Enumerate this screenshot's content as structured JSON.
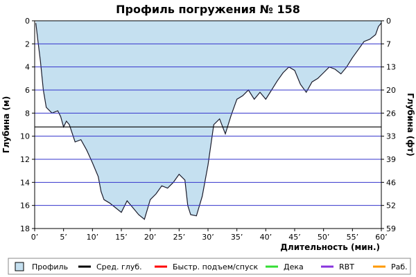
{
  "chart_data": {
    "type": "area",
    "title": "Профиль погружения № 158",
    "xlabel": "Длительность (мин.)",
    "ylabel_left": "Глубина (м)",
    "ylabel_right": "Глубина (фт)",
    "xlim": [
      0,
      60
    ],
    "ylim": [
      0,
      18
    ],
    "y_inverted": true,
    "x_ticks": [
      "0’",
      "5’",
      "10’",
      "15’",
      "20’",
      "25’",
      "30’",
      "35’",
      "40’",
      "45’",
      "50’",
      "55’",
      "60’"
    ],
    "y_ticks_left": [
      "0",
      "2",
      "4",
      "6",
      "8",
      "10",
      "12",
      "14",
      "16",
      "18"
    ],
    "y_ticks_right": [
      "0",
      "7",
      "13",
      "20",
      "26",
      "33",
      "39",
      "46",
      "52",
      "59"
    ],
    "average_depth": 9.2,
    "grid": true,
    "colors": {
      "profile_fill": "#c5e0f0",
      "profile_line": "#1a1a2a",
      "grid": "#3333cc",
      "average_line": "#000000",
      "fast_ascent": "#ff0000",
      "deco": "#33dd33",
      "rbt": "#8833dd",
      "work": "#ff9900"
    },
    "series": [
      {
        "name": "Профиль",
        "x": [
          0.2,
          0.5,
          1,
          1.5,
          2,
          3,
          4,
          4.5,
          5,
          5.5,
          6,
          7,
          8,
          9,
          10,
          11,
          11.5,
          12,
          13,
          14,
          15,
          16,
          17,
          18,
          19,
          20,
          21,
          22,
          23,
          24,
          25,
          26,
          26.5,
          27,
          28,
          29,
          30,
          31,
          32,
          33,
          34,
          35,
          36,
          37,
          38,
          39,
          40,
          41,
          42,
          43,
          44,
          45,
          46,
          47,
          48,
          49,
          50,
          51,
          52,
          53,
          54,
          55,
          56,
          57,
          58,
          59,
          59.5,
          60
        ],
        "y": [
          0.2,
          1.5,
          3.5,
          6,
          7.5,
          8.0,
          7.8,
          8.3,
          9.2,
          8.7,
          9.0,
          10.5,
          10.3,
          11.2,
          12.3,
          13.5,
          14.8,
          15.5,
          15.8,
          16.2,
          16.6,
          15.6,
          16.2,
          16.8,
          17.2,
          15.5,
          15.0,
          14.3,
          14.5,
          14.0,
          13.3,
          13.8,
          16.0,
          16.8,
          16.9,
          15.2,
          12.5,
          9.0,
          8.5,
          9.8,
          8.2,
          6.8,
          6.5,
          6.0,
          6.8,
          6.2,
          6.8,
          6.0,
          5.2,
          4.5,
          4.0,
          4.3,
          5.5,
          6.2,
          5.3,
          5.0,
          4.5,
          4.0,
          4.2,
          4.6,
          4.0,
          3.2,
          2.5,
          1.8,
          1.6,
          1.2,
          0.5,
          0.2
        ]
      }
    ]
  },
  "legend": [
    {
      "label": "Профиль",
      "kind": "box",
      "color": "#c5e0f0"
    },
    {
      "label": "Сред. глуб.",
      "kind": "line",
      "color": "#000000"
    },
    {
      "label": "Быстр. подъем/спуск",
      "kind": "line",
      "color": "#ff0000"
    },
    {
      "label": "Дека",
      "kind": "line",
      "color": "#33dd33"
    },
    {
      "label": "RBT",
      "kind": "line",
      "color": "#8833dd"
    },
    {
      "label": "Раб.",
      "kind": "line",
      "color": "#ff9900"
    }
  ]
}
